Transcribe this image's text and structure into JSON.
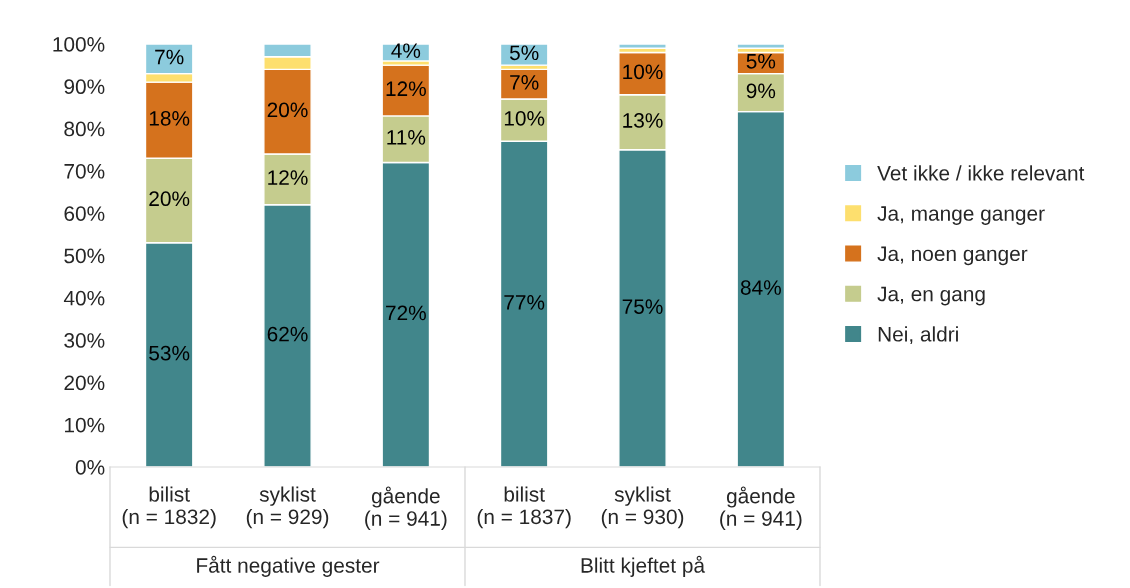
{
  "chart_data": {
    "type": "bar",
    "stacked": true,
    "categories": [
      "bilist\n(n = 1832)",
      "syklist\n(n = 929)",
      "gående\n(n = 941)",
      "bilist\n(n = 1837)",
      "syklist\n(n = 930)",
      "gående\n(n = 941)"
    ],
    "series": [
      {
        "name": "Nei, aldri",
        "color": "#41868b",
        "values": [
          53,
          62,
          72,
          77,
          75,
          84
        ],
        "value_labels": [
          "53%",
          "62%",
          "72%",
          "77%",
          "75%",
          "84%"
        ]
      },
      {
        "name": "Ja, en gang",
        "color": "#c5cc8e",
        "values": [
          20,
          12,
          11,
          10,
          13,
          9
        ],
        "value_labels": [
          "20%",
          "12%",
          "11%",
          "10%",
          "13%",
          "9%"
        ]
      },
      {
        "name": "Ja, noen ganger",
        "color": "#d5721d",
        "values": [
          18,
          20,
          12,
          7,
          10,
          5
        ],
        "value_labels": [
          "18%",
          "20%",
          "12%",
          "7%",
          "10%",
          "5%"
        ]
      },
      {
        "name": "Ja, mange ganger",
        "color": "#fddf6e",
        "values": [
          2,
          3,
          1,
          1,
          1,
          1
        ],
        "value_labels": [
          null,
          null,
          null,
          null,
          null,
          null
        ]
      },
      {
        "name": "Vet ikke / ikke relevant",
        "color": "#8ccbdd",
        "values": [
          7,
          3,
          4,
          5,
          1,
          1
        ],
        "value_labels": [
          "7%",
          null,
          "4%",
          "5%",
          null,
          null
        ]
      }
    ],
    "ylim": [
      0,
      100
    ],
    "yticks": [
      {
        "value": 0,
        "label": "0%"
      },
      {
        "value": 10,
        "label": "10%"
      },
      {
        "value": 20,
        "label": "20%"
      },
      {
        "value": 30,
        "label": "30%"
      },
      {
        "value": 40,
        "label": "40%"
      },
      {
        "value": 50,
        "label": "50%"
      },
      {
        "value": 60,
        "label": "60%"
      },
      {
        "value": 70,
        "label": "70%"
      },
      {
        "value": 80,
        "label": "80%"
      },
      {
        "value": 90,
        "label": "90%"
      },
      {
        "value": 100,
        "label": "100%"
      }
    ],
    "annotations": [
      "Fått negative gester",
      "Blitt kjeftet på"
    ],
    "grid": false,
    "legend": "right"
  }
}
